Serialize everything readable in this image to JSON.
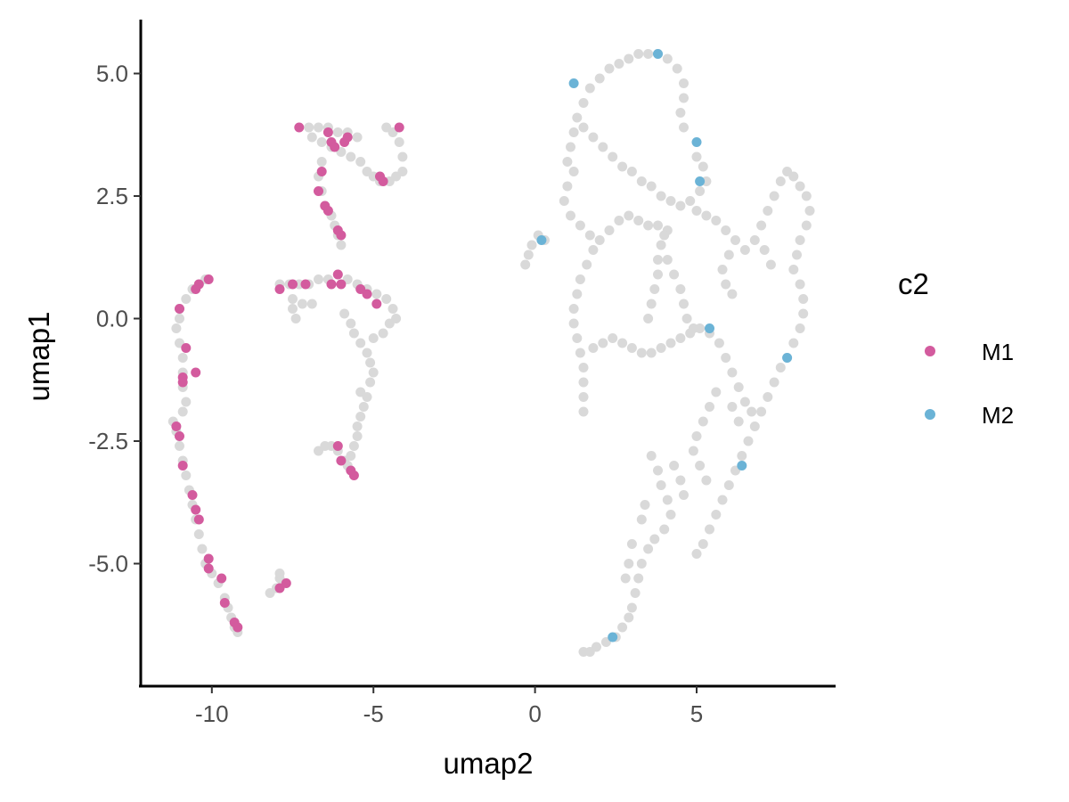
{
  "chart_data": {
    "type": "scatter",
    "xlabel": "umap2",
    "ylabel": "umap1",
    "xlim": [
      -12.2,
      9.3
    ],
    "ylim": [
      -7.5,
      6.1
    ],
    "x_ticks": [
      -10,
      -5,
      0,
      5
    ],
    "x_tick_labels": [
      "-10",
      "-5",
      "0",
      "5"
    ],
    "y_ticks": [
      -5,
      -2.5,
      0,
      2.5,
      5
    ],
    "y_tick_labels": [
      "-5.0",
      "-2.5",
      "0.0",
      "2.5",
      "5.0"
    ],
    "grid": false,
    "legend": {
      "title": "c2",
      "position": "right",
      "entries": [
        {
          "label": "M1",
          "color": "#d35b9e"
        },
        {
          "label": "M2",
          "color": "#6bb3d6"
        }
      ]
    },
    "background_color": "#d9d9d9",
    "background_points": [
      [
        -11.2,
        -2.1
      ],
      [
        -11.1,
        -2.3
      ],
      [
        -11.0,
        -2.6
      ],
      [
        -10.9,
        -2.9
      ],
      [
        -10.8,
        -3.2
      ],
      [
        -10.7,
        -3.5
      ],
      [
        -10.6,
        -3.8
      ],
      [
        -10.5,
        -4.1
      ],
      [
        -10.4,
        -4.4
      ],
      [
        -10.3,
        -4.7
      ],
      [
        -10.2,
        -5.0
      ],
      [
        -10.0,
        -5.2
      ],
      [
        -9.8,
        -5.4
      ],
      [
        -9.6,
        -5.7
      ],
      [
        -9.5,
        -5.9
      ],
      [
        -9.4,
        -6.1
      ],
      [
        -9.3,
        -6.3
      ],
      [
        -9.2,
        -6.4
      ],
      [
        -11.0,
        0.0
      ],
      [
        -11.1,
        -0.2
      ],
      [
        -11.0,
        -0.5
      ],
      [
        -10.9,
        -0.8
      ],
      [
        -10.9,
        -1.1
      ],
      [
        -10.9,
        -1.4
      ],
      [
        -10.8,
        -1.7
      ],
      [
        -10.9,
        -1.9
      ],
      [
        -11.0,
        0.2
      ],
      [
        -10.8,
        0.4
      ],
      [
        -10.6,
        0.6
      ],
      [
        -10.4,
        0.7
      ],
      [
        -10.2,
        0.8
      ],
      [
        -7.9,
        0.7
      ],
      [
        -7.6,
        0.7
      ],
      [
        -7.3,
        0.7
      ],
      [
        -7.0,
        0.7
      ],
      [
        -6.7,
        0.8
      ],
      [
        -6.4,
        0.8
      ],
      [
        -6.1,
        0.9
      ],
      [
        -5.8,
        0.8
      ],
      [
        -5.5,
        0.7
      ],
      [
        -5.2,
        0.6
      ],
      [
        -4.9,
        0.5
      ],
      [
        -4.6,
        0.4
      ],
      [
        -4.4,
        0.2
      ],
      [
        -7.5,
        0.4
      ],
      [
        -7.2,
        0.3
      ],
      [
        -7.5,
        0.2
      ],
      [
        -7.4,
        0.0
      ],
      [
        -6.9,
        0.3
      ],
      [
        -5.9,
        0.1
      ],
      [
        -5.7,
        -0.1
      ],
      [
        -5.6,
        -0.3
      ],
      [
        -5.4,
        -0.5
      ],
      [
        -5.2,
        -0.7
      ],
      [
        -5.1,
        -0.9
      ],
      [
        -5.0,
        -1.1
      ],
      [
        -5.1,
        -1.3
      ],
      [
        -5.2,
        -1.6
      ],
      [
        -5.3,
        -1.8
      ],
      [
        -5.4,
        -2.0
      ],
      [
        -5.5,
        -2.2
      ],
      [
        -5.5,
        -2.4
      ],
      [
        -5.6,
        -2.6
      ],
      [
        -5.7,
        -2.8
      ],
      [
        -5.4,
        -1.5
      ],
      [
        -5.0,
        -0.4
      ],
      [
        -4.7,
        -0.3
      ],
      [
        -4.5,
        -0.1
      ],
      [
        -4.3,
        0.0
      ],
      [
        -6.7,
        -2.7
      ],
      [
        -6.5,
        -2.6
      ],
      [
        -6.3,
        -2.6
      ],
      [
        -6.1,
        -2.7
      ],
      [
        -5.9,
        -2.9
      ],
      [
        -5.8,
        -3.0
      ],
      [
        -8.2,
        -5.6
      ],
      [
        -8.0,
        -5.5
      ],
      [
        -7.9,
        -5.3
      ],
      [
        -7.8,
        -5.4
      ],
      [
        -7.9,
        -5.2
      ],
      [
        -7.0,
        3.9
      ],
      [
        -6.7,
        3.9
      ],
      [
        -6.4,
        3.9
      ],
      [
        -6.1,
        3.8
      ],
      [
        -5.8,
        3.8
      ],
      [
        -5.5,
        3.7
      ],
      [
        -6.9,
        3.7
      ],
      [
        -6.6,
        3.6
      ],
      [
        -6.3,
        3.5
      ],
      [
        -6.0,
        3.4
      ],
      [
        -5.7,
        3.3
      ],
      [
        -5.4,
        3.2
      ],
      [
        -5.2,
        3.0
      ],
      [
        -5.0,
        2.9
      ],
      [
        -4.8,
        2.8
      ],
      [
        -4.5,
        2.8
      ],
      [
        -4.3,
        2.9
      ],
      [
        -4.1,
        3.0
      ],
      [
        -4.1,
        3.3
      ],
      [
        -4.2,
        3.6
      ],
      [
        -4.4,
        3.8
      ],
      [
        -4.6,
        3.9
      ],
      [
        -6.6,
        3.2
      ],
      [
        -6.7,
        2.9
      ],
      [
        -6.6,
        2.6
      ],
      [
        -6.5,
        2.3
      ],
      [
        -6.3,
        2.1
      ],
      [
        -6.2,
        1.9
      ],
      [
        -6.1,
        1.7
      ],
      [
        -6.0,
        1.5
      ],
      [
        -0.3,
        1.1
      ],
      [
        -0.2,
        1.3
      ],
      [
        -0.1,
        1.5
      ],
      [
        0.1,
        1.7
      ],
      [
        0.3,
        1.6
      ],
      [
        1.0,
        3.2
      ],
      [
        1.1,
        3.5
      ],
      [
        1.2,
        3.8
      ],
      [
        1.3,
        4.1
      ],
      [
        1.5,
        4.4
      ],
      [
        1.7,
        4.7
      ],
      [
        2.0,
        4.9
      ],
      [
        2.3,
        5.1
      ],
      [
        2.6,
        5.2
      ],
      [
        2.9,
        5.3
      ],
      [
        3.2,
        5.4
      ],
      [
        3.5,
        5.4
      ],
      [
        3.8,
        5.4
      ],
      [
        4.1,
        5.3
      ],
      [
        4.4,
        5.1
      ],
      [
        4.6,
        4.8
      ],
      [
        4.6,
        4.5
      ],
      [
        4.5,
        4.2
      ],
      [
        4.6,
        3.9
      ],
      [
        1.5,
        3.9
      ],
      [
        1.8,
        3.7
      ],
      [
        2.1,
        3.5
      ],
      [
        2.4,
        3.3
      ],
      [
        2.7,
        3.1
      ],
      [
        3.0,
        3.0
      ],
      [
        3.3,
        2.8
      ],
      [
        3.6,
        2.7
      ],
      [
        3.9,
        2.5
      ],
      [
        4.2,
        2.4
      ],
      [
        4.5,
        2.3
      ],
      [
        4.8,
        2.4
      ],
      [
        5.1,
        2.6
      ],
      [
        5.3,
        2.8
      ],
      [
        5.2,
        3.1
      ],
      [
        5.0,
        3.3
      ],
      [
        1.2,
        3.0
      ],
      [
        1.0,
        2.7
      ],
      [
        0.9,
        2.4
      ],
      [
        1.1,
        2.1
      ],
      [
        1.4,
        1.9
      ],
      [
        1.7,
        1.7
      ],
      [
        2.0,
        1.6
      ],
      [
        2.3,
        1.8
      ],
      [
        2.6,
        2.0
      ],
      [
        2.9,
        2.1
      ],
      [
        3.2,
        2.0
      ],
      [
        3.5,
        1.9
      ],
      [
        3.8,
        1.9
      ],
      [
        4.1,
        1.8
      ],
      [
        1.8,
        1.4
      ],
      [
        1.6,
        1.1
      ],
      [
        1.4,
        0.8
      ],
      [
        1.3,
        0.5
      ],
      [
        1.2,
        0.2
      ],
      [
        1.2,
        -0.1
      ],
      [
        1.3,
        -0.4
      ],
      [
        1.4,
        -0.7
      ],
      [
        1.5,
        -1.0
      ],
      [
        1.5,
        -1.3
      ],
      [
        1.5,
        -1.6
      ],
      [
        1.5,
        -1.9
      ],
      [
        1.8,
        -0.6
      ],
      [
        2.1,
        -0.5
      ],
      [
        2.4,
        -0.4
      ],
      [
        2.7,
        -0.5
      ],
      [
        3.0,
        -0.6
      ],
      [
        3.3,
        -0.7
      ],
      [
        3.6,
        -0.7
      ],
      [
        3.9,
        -0.6
      ],
      [
        4.2,
        -0.5
      ],
      [
        4.5,
        -0.4
      ],
      [
        4.8,
        -0.3
      ],
      [
        5.1,
        -0.2
      ],
      [
        5.4,
        -0.3
      ],
      [
        5.7,
        -0.5
      ],
      [
        3.5,
        0.0
      ],
      [
        3.6,
        0.3
      ],
      [
        3.7,
        0.6
      ],
      [
        3.8,
        0.9
      ],
      [
        3.8,
        1.2
      ],
      [
        3.9,
        1.5
      ],
      [
        4.0,
        1.7
      ],
      [
        4.1,
        1.2
      ],
      [
        4.3,
        0.9
      ],
      [
        4.5,
        0.6
      ],
      [
        4.6,
        0.3
      ],
      [
        4.7,
        0.0
      ],
      [
        4.9,
        -0.2
      ],
      [
        5.0,
        2.2
      ],
      [
        5.3,
        2.1
      ],
      [
        5.6,
        2.0
      ],
      [
        5.9,
        1.8
      ],
      [
        6.2,
        1.6
      ],
      [
        6.5,
        1.4
      ],
      [
        6.8,
        1.6
      ],
      [
        7.0,
        1.9
      ],
      [
        7.2,
        2.2
      ],
      [
        7.4,
        2.5
      ],
      [
        7.6,
        2.8
      ],
      [
        7.8,
        3.0
      ],
      [
        8.0,
        2.9
      ],
      [
        8.2,
        2.7
      ],
      [
        8.4,
        2.5
      ],
      [
        8.5,
        2.2
      ],
      [
        8.4,
        1.9
      ],
      [
        8.2,
        1.6
      ],
      [
        8.1,
        1.3
      ],
      [
        6.0,
        1.3
      ],
      [
        5.8,
        1.0
      ],
      [
        5.9,
        0.7
      ],
      [
        6.1,
        0.5
      ],
      [
        7.1,
        1.4
      ],
      [
        7.3,
        1.1
      ],
      [
        8.0,
        1.0
      ],
      [
        8.2,
        0.7
      ],
      [
        8.3,
        0.4
      ],
      [
        8.3,
        0.1
      ],
      [
        8.2,
        -0.2
      ],
      [
        8.0,
        -0.5
      ],
      [
        7.8,
        -0.8
      ],
      [
        7.6,
        -1.0
      ],
      [
        7.4,
        -1.3
      ],
      [
        7.2,
        -1.6
      ],
      [
        7.0,
        -1.9
      ],
      [
        6.8,
        -2.2
      ],
      [
        6.6,
        -2.5
      ],
      [
        6.4,
        -2.8
      ],
      [
        6.2,
        -3.1
      ],
      [
        6.0,
        -3.4
      ],
      [
        5.8,
        -3.7
      ],
      [
        5.6,
        -4.0
      ],
      [
        5.4,
        -4.3
      ],
      [
        5.2,
        -4.6
      ],
      [
        5.0,
        -4.8
      ],
      [
        5.9,
        -0.8
      ],
      [
        6.1,
        -1.1
      ],
      [
        6.3,
        -1.4
      ],
      [
        6.5,
        -1.7
      ],
      [
        6.7,
        -1.9
      ],
      [
        6.3,
        -2.1
      ],
      [
        6.1,
        -1.8
      ],
      [
        5.6,
        -1.5
      ],
      [
        5.4,
        -1.8
      ],
      [
        5.2,
        -2.1
      ],
      [
        5.0,
        -2.4
      ],
      [
        4.9,
        -2.7
      ],
      [
        5.1,
        -3.0
      ],
      [
        5.3,
        -3.3
      ],
      [
        3.6,
        -2.8
      ],
      [
        3.8,
        -3.1
      ],
      [
        3.9,
        -3.4
      ],
      [
        4.1,
        -3.7
      ],
      [
        4.2,
        -4.0
      ],
      [
        4.0,
        -4.3
      ],
      [
        3.7,
        -4.5
      ],
      [
        3.5,
        -4.7
      ],
      [
        3.3,
        -5.0
      ],
      [
        3.2,
        -5.3
      ],
      [
        3.1,
        -5.6
      ],
      [
        3.0,
        -5.9
      ],
      [
        2.9,
        -6.1
      ],
      [
        2.7,
        -6.3
      ],
      [
        2.5,
        -6.5
      ],
      [
        2.2,
        -6.6
      ],
      [
        1.9,
        -6.7
      ],
      [
        1.7,
        -6.8
      ],
      [
        1.5,
        -6.8
      ],
      [
        3.0,
        -4.6
      ],
      [
        2.9,
        -5.0
      ],
      [
        2.8,
        -5.3
      ],
      [
        3.4,
        -3.8
      ],
      [
        3.3,
        -4.1
      ],
      [
        4.3,
        -3.0
      ],
      [
        4.5,
        -3.3
      ],
      [
        4.6,
        -3.6
      ]
    ],
    "series": [
      {
        "name": "M1",
        "color": "#d35b9e",
        "points": [
          [
            -11.1,
            -2.2
          ],
          [
            -11.0,
            -2.4
          ],
          [
            -10.9,
            -3.0
          ],
          [
            -10.6,
            -3.6
          ],
          [
            -10.5,
            -3.9
          ],
          [
            -10.4,
            -4.1
          ],
          [
            -10.1,
            -4.9
          ],
          [
            -10.1,
            -5.1
          ],
          [
            -9.7,
            -5.3
          ],
          [
            -9.6,
            -5.8
          ],
          [
            -9.3,
            -6.2
          ],
          [
            -9.2,
            -6.3
          ],
          [
            -11.0,
            0.2
          ],
          [
            -10.8,
            -0.6
          ],
          [
            -10.9,
            -1.3
          ],
          [
            -10.9,
            -1.2
          ],
          [
            -10.5,
            -1.1
          ],
          [
            -10.5,
            0.6
          ],
          [
            -10.4,
            0.7
          ],
          [
            -10.1,
            0.8
          ],
          [
            -7.9,
            0.6
          ],
          [
            -7.5,
            0.7
          ],
          [
            -7.1,
            0.7
          ],
          [
            -6.3,
            0.7
          ],
          [
            -6.1,
            0.9
          ],
          [
            -6.0,
            0.7
          ],
          [
            -5.4,
            0.6
          ],
          [
            -5.2,
            0.5
          ],
          [
            -4.9,
            0.3
          ],
          [
            -6.1,
            -2.6
          ],
          [
            -6.0,
            -2.9
          ],
          [
            -5.7,
            -3.1
          ],
          [
            -5.6,
            -3.2
          ],
          [
            -7.9,
            -5.5
          ],
          [
            -7.7,
            -5.4
          ],
          [
            -7.3,
            3.9
          ],
          [
            -6.4,
            3.8
          ],
          [
            -6.3,
            3.6
          ],
          [
            -6.2,
            3.5
          ],
          [
            -5.9,
            3.6
          ],
          [
            -5.8,
            3.7
          ],
          [
            -4.8,
            2.9
          ],
          [
            -4.7,
            2.8
          ],
          [
            -4.2,
            3.9
          ],
          [
            -6.6,
            3.0
          ],
          [
            -6.7,
            2.6
          ],
          [
            -6.5,
            2.3
          ],
          [
            -6.4,
            2.2
          ],
          [
            -6.1,
            1.8
          ],
          [
            -6.0,
            1.7
          ]
        ]
      },
      {
        "name": "M2",
        "color": "#6bb3d6",
        "points": [
          [
            3.8,
            5.4
          ],
          [
            1.2,
            4.8
          ],
          [
            5.0,
            3.6
          ],
          [
            5.1,
            2.8
          ],
          [
            0.2,
            1.6
          ],
          [
            5.4,
            -0.2
          ],
          [
            7.8,
            -0.8
          ],
          [
            6.4,
            -3.0
          ],
          [
            2.4,
            -6.5
          ]
        ]
      }
    ]
  }
}
